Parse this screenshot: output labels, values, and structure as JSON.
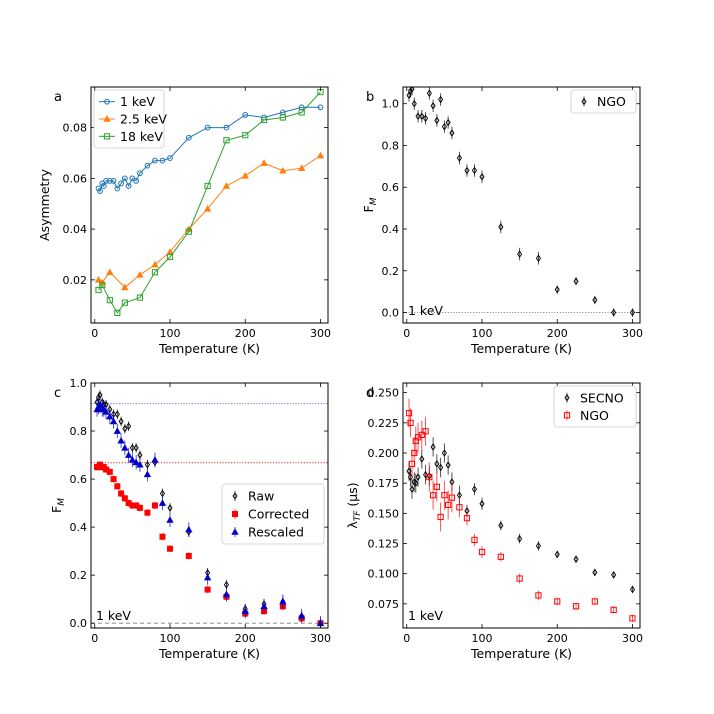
{
  "chart_data": [
    {
      "id": "a",
      "panel_label": "a",
      "type": "line",
      "xlabel": "Temperature (K)",
      "ylabel": "Asymmetry",
      "xlim": [
        -5,
        310
      ],
      "ylim": [
        0.003,
        0.096
      ],
      "xticks": [
        0,
        100,
        200,
        300
      ],
      "yticks": [
        0.02,
        0.04,
        0.06,
        0.08
      ],
      "ytick_labels": [
        "0.02",
        "0.04",
        "0.06",
        "0.08"
      ],
      "legend": {
        "position": "top-left",
        "entries": [
          "1 keV",
          "2.5 keV",
          "18 keV"
        ]
      },
      "series": [
        {
          "name": "1 keV",
          "color": "#1f77b4",
          "marker": "circle",
          "line": true,
          "x": [
            5,
            7,
            10,
            12,
            15,
            20,
            25,
            30,
            35,
            40,
            45,
            50,
            55,
            60,
            70,
            80,
            90,
            100,
            125,
            150,
            175,
            200,
            225,
            250,
            275,
            300
          ],
          "y": [
            0.056,
            0.055,
            0.058,
            0.057,
            0.059,
            0.059,
            0.059,
            0.056,
            0.058,
            0.06,
            0.057,
            0.06,
            0.059,
            0.062,
            0.065,
            0.067,
            0.067,
            0.068,
            0.076,
            0.08,
            0.08,
            0.085,
            0.084,
            0.086,
            0.088,
            0.088
          ]
        },
        {
          "name": "2.5 keV",
          "color": "#ff7f0e",
          "marker": "triangle",
          "line": true,
          "x": [
            5,
            10,
            20,
            40,
            60,
            80,
            100,
            125,
            150,
            175,
            200,
            225,
            250,
            275,
            300
          ],
          "y": [
            0.02,
            0.019,
            0.023,
            0.017,
            0.022,
            0.026,
            0.031,
            0.04,
            0.048,
            0.057,
            0.061,
            0.066,
            0.063,
            0.064,
            0.069
          ]
        },
        {
          "name": "18 keV",
          "color": "#2ca02c",
          "marker": "square",
          "line": true,
          "x": [
            5,
            10,
            20,
            30,
            40,
            60,
            80,
            100,
            125,
            150,
            175,
            200,
            225,
            250,
            275,
            300
          ],
          "y": [
            0.016,
            0.018,
            0.012,
            0.007,
            0.011,
            0.013,
            0.023,
            0.029,
            0.039,
            0.057,
            0.075,
            0.077,
            0.083,
            0.084,
            0.086,
            0.094
          ]
        }
      ]
    },
    {
      "id": "b",
      "panel_label": "b",
      "type": "scatter",
      "xlabel": "Temperature (K)",
      "ylabel": "F",
      "ylabel_sub": "M",
      "xlim": [
        -5,
        310
      ],
      "ylim": [
        -0.05,
        1.08
      ],
      "xticks": [
        0,
        100,
        200,
        300
      ],
      "yticks": [
        0.0,
        0.2,
        0.4,
        0.6,
        0.8,
        1.0
      ],
      "ytick_labels": [
        "0.0",
        "0.2",
        "0.4",
        "0.6",
        "0.8",
        "1.0"
      ],
      "annotation": "1 keV",
      "reference_lines": [
        {
          "y": 0.0,
          "color": "#808080",
          "style": "dotted"
        }
      ],
      "legend": {
        "position": "top-right",
        "entries": [
          "NGO"
        ]
      },
      "series": [
        {
          "name": "NGO",
          "color": "#000000",
          "marker": "diamond-open",
          "line": false,
          "x": [
            3,
            5,
            7,
            10,
            15,
            20,
            25,
            30,
            35,
            40,
            45,
            50,
            55,
            60,
            70,
            80,
            90,
            100,
            125,
            150,
            175,
            200,
            225,
            250,
            275,
            300
          ],
          "y": [
            1.04,
            1.06,
            1.07,
            1.0,
            0.94,
            0.94,
            0.93,
            1.05,
            0.99,
            0.92,
            1.02,
            0.89,
            0.91,
            0.86,
            0.74,
            0.68,
            0.68,
            0.65,
            0.41,
            0.28,
            0.26,
            0.11,
            0.15,
            0.06,
            0.0,
            0.0
          ],
          "err": [
            0.03,
            0.03,
            0.03,
            0.03,
            0.03,
            0.03,
            0.03,
            0.03,
            0.03,
            0.03,
            0.03,
            0.03,
            0.03,
            0.03,
            0.03,
            0.03,
            0.03,
            0.03,
            0.03,
            0.03,
            0.03,
            0.02,
            0.02,
            0.02,
            0.02,
            0.02
          ]
        }
      ]
    },
    {
      "id": "c",
      "panel_label": "c",
      "type": "scatter",
      "xlabel": "Temperature (K)",
      "ylabel": "F",
      "ylabel_sub": "M",
      "xlim": [
        -5,
        310
      ],
      "ylim": [
        -0.02,
        1.0
      ],
      "xticks": [
        0,
        100,
        200,
        300
      ],
      "yticks": [
        0.0,
        0.2,
        0.4,
        0.6,
        0.8,
        1.0
      ],
      "ytick_labels": [
        "0.0",
        "0.2",
        "0.4",
        "0.6",
        "0.8",
        "1.0"
      ],
      "annotation": "1 keV",
      "reference_lines": [
        {
          "y": 0.915,
          "color": "#6b6bd6",
          "style": "dotted"
        },
        {
          "y": 0.668,
          "color": "#d62728",
          "style": "dotted"
        },
        {
          "y": 0.0,
          "color": "#808080",
          "style": "dashed"
        }
      ],
      "legend": {
        "position": "right",
        "entries": [
          "Raw",
          "Corrected",
          "Rescaled"
        ]
      },
      "series": [
        {
          "name": "Raw",
          "color": "#000000",
          "marker": "diamond-open",
          "line": false,
          "x": [
            3,
            5,
            7,
            10,
            12,
            15,
            20,
            25,
            30,
            35,
            40,
            45,
            50,
            55,
            60,
            70,
            80,
            90,
            100,
            125,
            150,
            175,
            200,
            225,
            250,
            275,
            300
          ],
          "y": [
            0.92,
            0.94,
            0.95,
            0.92,
            0.91,
            0.91,
            0.89,
            0.87,
            0.87,
            0.84,
            0.81,
            0.82,
            0.73,
            0.73,
            0.7,
            0.66,
            0.67,
            0.54,
            0.48,
            0.38,
            0.21,
            0.16,
            0.06,
            0.08,
            0.09,
            0.03,
            0.0
          ],
          "err": [
            0.02,
            0.02,
            0.02,
            0.02,
            0.02,
            0.02,
            0.02,
            0.02,
            0.02,
            0.02,
            0.02,
            0.02,
            0.02,
            0.02,
            0.02,
            0.02,
            0.02,
            0.02,
            0.02,
            0.02,
            0.02,
            0.02,
            0.02,
            0.02,
            0.02,
            0.02,
            0.02
          ]
        },
        {
          "name": "Corrected",
          "color": "#ff0000",
          "marker": "square-filled",
          "line": false,
          "x": [
            3,
            5,
            7,
            10,
            12,
            15,
            20,
            25,
            30,
            35,
            40,
            45,
            50,
            55,
            60,
            70,
            80,
            90,
            100,
            125,
            150,
            175,
            200,
            225,
            250,
            275,
            300
          ],
          "y": [
            0.65,
            0.65,
            0.66,
            0.65,
            0.65,
            0.64,
            0.63,
            0.6,
            0.57,
            0.54,
            0.52,
            0.5,
            0.49,
            0.49,
            0.48,
            0.46,
            0.49,
            0.36,
            0.31,
            0.28,
            0.14,
            0.11,
            0.04,
            0.05,
            0.07,
            0.02,
            0.0
          ],
          "err": [
            0.015,
            0.015,
            0.015,
            0.015,
            0.015,
            0.015,
            0.015,
            0.015,
            0.015,
            0.015,
            0.015,
            0.015,
            0.015,
            0.015,
            0.015,
            0.015,
            0.015,
            0.015,
            0.015,
            0.015,
            0.015,
            0.015,
            0.015,
            0.015,
            0.015,
            0.015,
            0.015
          ]
        },
        {
          "name": "Rescaled",
          "color": "#0000cc",
          "marker": "triangle-filled",
          "line": false,
          "x": [
            3,
            5,
            7,
            10,
            12,
            15,
            20,
            25,
            30,
            35,
            40,
            45,
            50,
            55,
            60,
            70,
            80,
            90,
            100,
            125,
            150,
            175,
            200,
            225,
            250,
            275,
            300
          ],
          "y": [
            0.89,
            0.9,
            0.91,
            0.89,
            0.89,
            0.88,
            0.86,
            0.84,
            0.8,
            0.76,
            0.73,
            0.7,
            0.68,
            0.67,
            0.66,
            0.62,
            0.68,
            0.5,
            0.43,
            0.39,
            0.19,
            0.12,
            0.05,
            0.07,
            0.09,
            0.03,
            0.0
          ],
          "err": [
            0.03,
            0.03,
            0.03,
            0.03,
            0.03,
            0.03,
            0.03,
            0.03,
            0.03,
            0.03,
            0.03,
            0.03,
            0.03,
            0.03,
            0.03,
            0.03,
            0.03,
            0.03,
            0.03,
            0.03,
            0.03,
            0.03,
            0.03,
            0.03,
            0.03,
            0.03,
            0.03
          ]
        }
      ]
    },
    {
      "id": "d",
      "panel_label": "d",
      "type": "scatter",
      "xlabel": "Temperature (K)",
      "ylabel": "λ",
      "ylabel_sub": "TF",
      "ylabel_unit": " (μs)",
      "xlim": [
        -5,
        310
      ],
      "ylim": [
        0.055,
        0.258
      ],
      "xticks": [
        0,
        100,
        200,
        300
      ],
      "yticks": [
        0.075,
        0.1,
        0.125,
        0.15,
        0.175,
        0.2,
        0.225,
        0.25
      ],
      "ytick_labels": [
        "0.075",
        "0.100",
        "0.125",
        "0.150",
        "0.175",
        "0.200",
        "0.225",
        "0.250"
      ],
      "annotation": "1 keV",
      "legend": {
        "position": "top-right",
        "entries": [
          "SECNO",
          "NGO"
        ]
      },
      "series": [
        {
          "name": "SECNO",
          "color": "#000000",
          "marker": "diamond-open",
          "line": false,
          "x": [
            3,
            5,
            7,
            10,
            12,
            15,
            20,
            25,
            30,
            35,
            40,
            45,
            50,
            55,
            60,
            70,
            80,
            90,
            100,
            125,
            150,
            175,
            200,
            225,
            250,
            275,
            300
          ],
          "y": [
            0.185,
            0.18,
            0.17,
            0.176,
            0.175,
            0.18,
            0.195,
            0.182,
            0.181,
            0.205,
            0.191,
            0.188,
            0.2,
            0.19,
            0.176,
            0.165,
            0.152,
            0.17,
            0.158,
            0.14,
            0.129,
            0.123,
            0.116,
            0.112,
            0.101,
            0.099,
            0.087
          ],
          "err": [
            0.008,
            0.008,
            0.008,
            0.008,
            0.008,
            0.008,
            0.008,
            0.008,
            0.008,
            0.008,
            0.008,
            0.008,
            0.008,
            0.008,
            0.008,
            0.008,
            0.005,
            0.005,
            0.005,
            0.004,
            0.004,
            0.004,
            0.003,
            0.003,
            0.003,
            0.003,
            0.003
          ]
        },
        {
          "name": "NGO",
          "color": "#ff0000",
          "marker": "square-open",
          "line": false,
          "x": [
            3,
            5,
            7,
            10,
            12,
            15,
            20,
            25,
            30,
            35,
            40,
            45,
            50,
            55,
            60,
            70,
            80,
            90,
            100,
            125,
            150,
            175,
            200,
            225,
            250,
            275,
            300
          ],
          "y": [
            0.233,
            0.225,
            0.191,
            0.2,
            0.21,
            0.213,
            0.215,
            0.218,
            0.18,
            0.165,
            0.172,
            0.147,
            0.165,
            0.157,
            0.163,
            0.155,
            0.146,
            0.128,
            0.118,
            0.114,
            0.096,
            0.082,
            0.077,
            0.073,
            0.077,
            0.07,
            0.063
          ],
          "err": [
            0.012,
            0.012,
            0.012,
            0.012,
            0.012,
            0.012,
            0.012,
            0.012,
            0.012,
            0.012,
            0.012,
            0.012,
            0.012,
            0.012,
            0.012,
            0.008,
            0.006,
            0.005,
            0.005,
            0.004,
            0.004,
            0.004,
            0.003,
            0.003,
            0.003,
            0.003,
            0.003
          ]
        }
      ]
    }
  ]
}
